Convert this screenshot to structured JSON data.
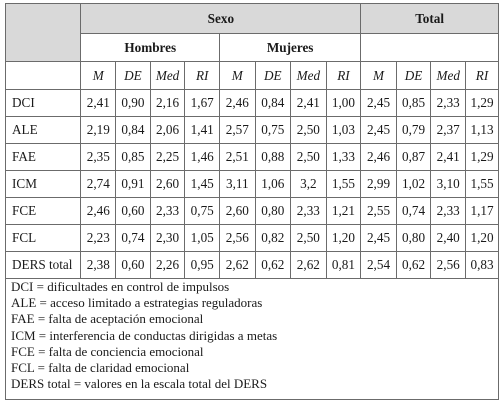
{
  "table": {
    "group_headers": {
      "sexo": "Sexo",
      "total": "Total"
    },
    "sub_headers": {
      "hombres": "Hombres",
      "mujeres": "Mujeres"
    },
    "stat_columns": [
      "M",
      "DE",
      "Med",
      "RI",
      "M",
      "DE",
      "Med",
      "RI",
      "M",
      "DE",
      "Med",
      "RI"
    ],
    "rows": [
      {
        "label": "DCI",
        "values": [
          "2,41",
          "0,90",
          "2,16",
          "1,67",
          "2,46",
          "0,84",
          "2,41",
          "1,00",
          "2,45",
          "0,85",
          "2,33",
          "1,29"
        ]
      },
      {
        "label": "ALE",
        "values": [
          "2,19",
          "0,84",
          "2,06",
          "1,41",
          "2,57",
          "0,75",
          "2,50",
          "1,03",
          "2,45",
          "0,79",
          "2,37",
          "1,13"
        ]
      },
      {
        "label": "FAE",
        "values": [
          "2,35",
          "0,85",
          "2,25",
          "1,46",
          "2,51",
          "0,88",
          "2,50",
          "1,33",
          "2,46",
          "0,87",
          "2,41",
          "1,29"
        ]
      },
      {
        "label": "ICM",
        "values": [
          "2,74",
          "0,91",
          "2,60",
          "1,45",
          "3,11",
          "1,06",
          "3,2",
          "1,55",
          "2,99",
          "1,02",
          "3,10",
          "1,55"
        ]
      },
      {
        "label": "FCE",
        "values": [
          "2,46",
          "0,60",
          "2,33",
          "0,75",
          "2,60",
          "0,80",
          "2,33",
          "1,21",
          "2,55",
          "0,74",
          "2,33",
          "1,17"
        ]
      },
      {
        "label": "FCL",
        "values": [
          "2,23",
          "0,74",
          "2,30",
          "1,05",
          "2,56",
          "0,82",
          "2,50",
          "1,20",
          "2,45",
          "0,80",
          "2,40",
          "1,20"
        ]
      },
      {
        "label": "DERS total",
        "values": [
          "2,38",
          "0,60",
          "2,26",
          "0,95",
          "2,62",
          "0,62",
          "2,62",
          "0,81",
          "2,54",
          "0,62",
          "2,56",
          "0,83"
        ]
      }
    ]
  },
  "notes": [
    "DCI = dificultades en control de impulsos",
    "ALE = acceso limitado a estrategias reguladoras",
    "FAE = falta de aceptación emocional",
    "ICM = interferencia de conductas dirigidas a metas",
    "FCE = falta de conciencia emocional",
    "FCL = falta de claridad emocional",
    "DERS total = valores en la escala total del DERS"
  ],
  "colors": {
    "header_fill": "#d9d9d9",
    "border": "#6b6b6b"
  }
}
